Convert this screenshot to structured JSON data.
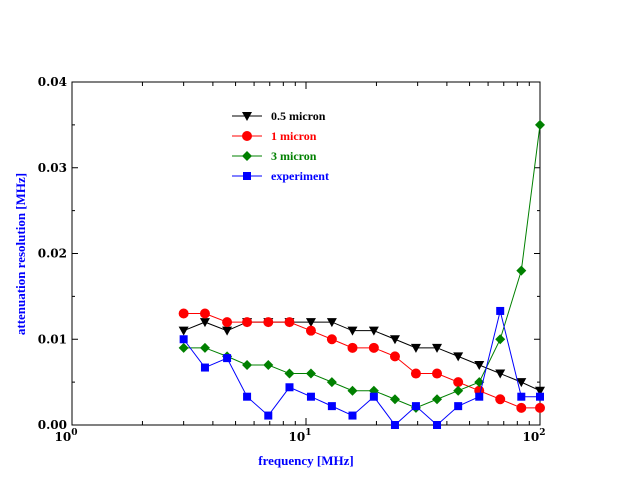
{
  "chart_data": {
    "type": "line",
    "xlabel": "frequency [MHz]",
    "ylabel": "attenuation resolution [MHz]",
    "xscale": "log",
    "xlim": [
      1,
      100
    ],
    "ylim": [
      0,
      0.04
    ],
    "x_ticks": [
      {
        "base": "10",
        "exp": "0"
      },
      {
        "base": "10",
        "exp": "1"
      },
      {
        "base": "10",
        "exp": "2"
      }
    ],
    "y_ticks": [
      {
        "value": 0,
        "label": "0.00"
      },
      {
        "value": 0.01,
        "label": "0.01"
      },
      {
        "value": 0.02,
        "label": "0.02"
      },
      {
        "value": 0.03,
        "label": "0.03"
      },
      {
        "value": 0.04,
        "label": "0.04"
      }
    ],
    "grid": false,
    "legend_position": "top-left",
    "series": [
      {
        "name": "0.5 micron",
        "color": "#000000",
        "marker": "triangle-down",
        "x": [
          3.0,
          3.7,
          4.6,
          5.6,
          6.9,
          8.5,
          10.5,
          12.9,
          15.8,
          19.5,
          24.0,
          29.5,
          36.3,
          44.7,
          55.0,
          67.6,
          83.2,
          100
        ],
        "y": [
          0.011,
          0.012,
          0.011,
          0.012,
          0.012,
          0.012,
          0.012,
          0.012,
          0.011,
          0.011,
          0.01,
          0.009,
          0.009,
          0.008,
          0.007,
          0.006,
          0.005,
          0.004
        ]
      },
      {
        "name": "1 micron",
        "color": "#ff0000",
        "marker": "circle",
        "x": [
          3.0,
          3.7,
          4.6,
          5.6,
          6.9,
          8.5,
          10.5,
          12.9,
          15.8,
          19.5,
          24.0,
          29.5,
          36.3,
          44.7,
          55.0,
          67.6,
          83.2,
          100
        ],
        "y": [
          0.013,
          0.013,
          0.012,
          0.012,
          0.012,
          0.012,
          0.011,
          0.01,
          0.009,
          0.009,
          0.008,
          0.006,
          0.006,
          0.005,
          0.004,
          0.003,
          0.002,
          0.002
        ]
      },
      {
        "name": "3 micron",
        "color": "#008000",
        "marker": "diamond",
        "x": [
          3.0,
          3.7,
          4.6,
          5.6,
          6.9,
          8.5,
          10.5,
          12.9,
          15.8,
          19.5,
          24.0,
          29.5,
          36.3,
          44.7,
          55.0,
          67.6,
          83.2,
          100
        ],
        "y": [
          0.009,
          0.009,
          0.008,
          0.007,
          0.007,
          0.006,
          0.006,
          0.005,
          0.004,
          0.004,
          0.003,
          0.002,
          0.003,
          0.004,
          0.005,
          0.01,
          0.018,
          0.035
        ]
      },
      {
        "name": "experiment",
        "color": "#0000ff",
        "marker": "square",
        "x": [
          3.0,
          3.7,
          4.6,
          5.6,
          6.9,
          8.5,
          10.5,
          12.9,
          15.8,
          19.5,
          24.0,
          29.5,
          36.3,
          44.7,
          55.0,
          67.6,
          83.2,
          100
        ],
        "y": [
          0.01,
          0.0067,
          0.0078,
          0.0033,
          0.0011,
          0.0044,
          0.0033,
          0.0022,
          0.0011,
          0.0033,
          0.0,
          0.0022,
          0.0,
          0.0022,
          0.0033,
          0.0133,
          0.0033,
          0.0033
        ]
      }
    ]
  }
}
